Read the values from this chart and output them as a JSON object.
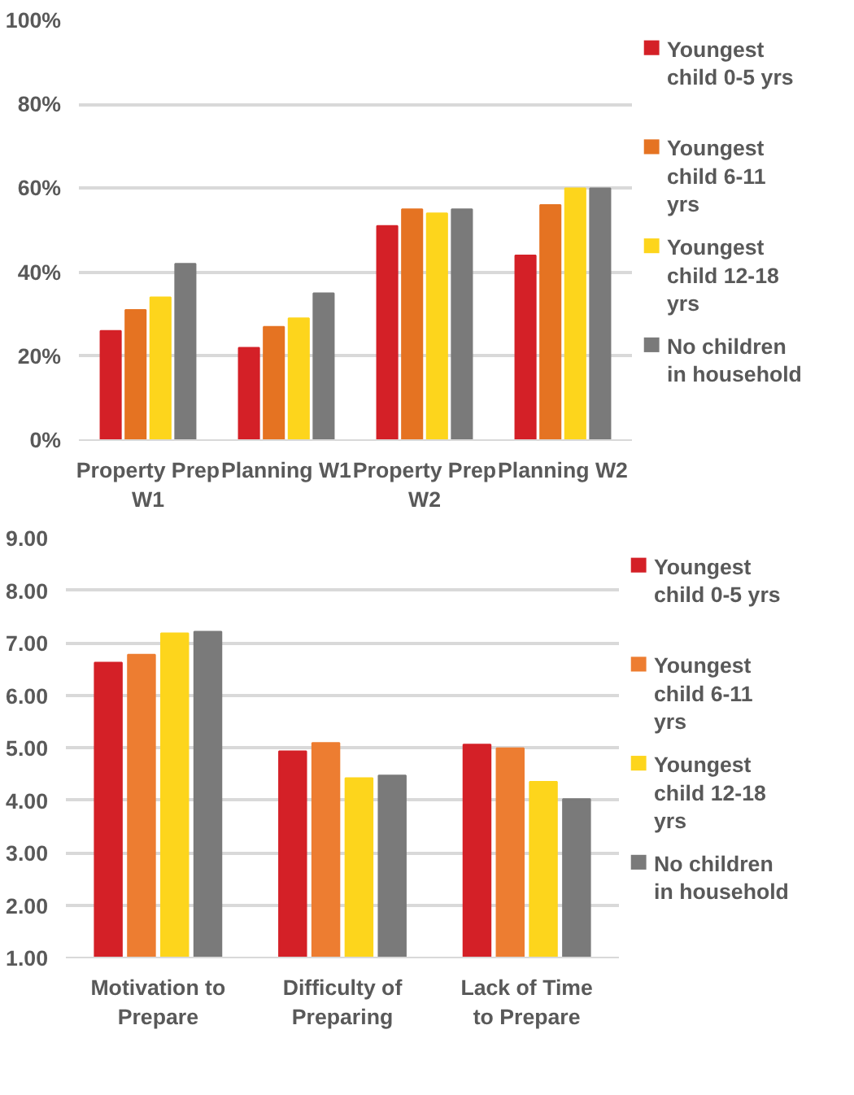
{
  "chart_data": [
    {
      "type": "bar",
      "categories": [
        "Property Prep W1",
        "Planning W1",
        "Property Prep W2",
        "Planning W2"
      ],
      "series": [
        {
          "name": "Youngest child 0-5 yrs",
          "color": "#d42027",
          "values": [
            26,
            22,
            51,
            44
          ]
        },
        {
          "name": "Youngest child 6-11 yrs",
          "color": "#e57322",
          "values": [
            31,
            27,
            55,
            56
          ]
        },
        {
          "name": "Youngest child 12-18 yrs",
          "color": "#fdd51c",
          "values": [
            34,
            29,
            54,
            60
          ]
        },
        {
          "name": "No children in household",
          "color": "#7a7a7a",
          "values": [
            42,
            35,
            55,
            60
          ]
        }
      ],
      "ylim": [
        0,
        100
      ],
      "yticks": [
        {
          "value": 0,
          "label": "0%"
        },
        {
          "value": 20,
          "label": "20%"
        },
        {
          "value": 40,
          "label": "40%"
        },
        {
          "value": 60,
          "label": "60%"
        },
        {
          "value": 80,
          "label": "80%"
        },
        {
          "value": 100,
          "label": "100%"
        }
      ],
      "grid": "y",
      "legend": "right"
    },
    {
      "type": "bar",
      "categories": [
        "Motivation to Prepare",
        "Difficulty of Preparing",
        "Lack of Time to Prepare"
      ],
      "series": [
        {
          "name": "Youngest child 0-5 yrs",
          "color": "#d42027",
          "values": [
            6.62,
            4.93,
            5.06
          ]
        },
        {
          "name": "Youngest child 6-11 yrs",
          "color": "#ed7d31",
          "values": [
            6.77,
            5.09,
            4.99
          ]
        },
        {
          "name": "Youngest child 12-18 yrs",
          "color": "#fdd51c",
          "values": [
            7.18,
            4.42,
            4.35
          ]
        },
        {
          "name": "No children in household",
          "color": "#7a7a7a",
          "values": [
            7.21,
            4.47,
            4.02
          ]
        }
      ],
      "ylim": [
        1,
        9
      ],
      "yticks": [
        {
          "value": 1,
          "label": "1.00"
        },
        {
          "value": 2,
          "label": "2.00"
        },
        {
          "value": 3,
          "label": "3.00"
        },
        {
          "value": 4,
          "label": "4.00"
        },
        {
          "value": 5,
          "label": "5.00"
        },
        {
          "value": 6,
          "label": "6.00"
        },
        {
          "value": 7,
          "label": "7.00"
        },
        {
          "value": 8,
          "label": "8.00"
        },
        {
          "value": 9,
          "label": "9.00"
        }
      ],
      "grid": "y",
      "legend": "right"
    }
  ]
}
